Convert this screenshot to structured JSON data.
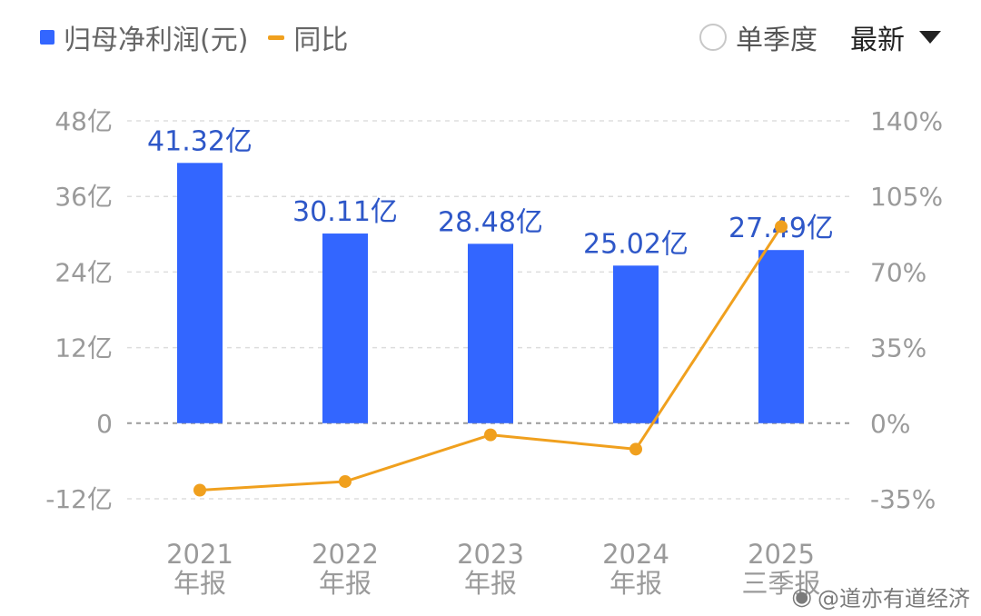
{
  "legend": {
    "bar_label": "归母净利润(元)",
    "line_label": "同比"
  },
  "controls": {
    "single_quarter_label": "单季度",
    "latest_label": "最新"
  },
  "colors": {
    "bar": "#3366ff",
    "line": "#f0a01e",
    "data_label": "#2e57c8",
    "axis_text": "#9a9a9a",
    "grid": "#dddddd",
    "zero_line": "#9a9a9a"
  },
  "chart_data": {
    "type": "bar",
    "categories": [
      [
        "2021",
        "年报"
      ],
      [
        "2022",
        "年报"
      ],
      [
        "2023",
        "年报"
      ],
      [
        "2024",
        "年报"
      ],
      [
        "2025",
        "三季报"
      ]
    ],
    "series": [
      {
        "name": "归母净利润(元)",
        "type": "bar",
        "axis": "left",
        "values": [
          41.32,
          30.11,
          28.48,
          25.02,
          27.49
        ],
        "data_labels": [
          "41.32亿",
          "30.11亿",
          "28.48亿",
          "25.02亿",
          "27.49亿"
        ]
      },
      {
        "name": "同比",
        "type": "line",
        "axis": "right",
        "values": [
          -31,
          -27,
          -5.4,
          -12,
          91
        ]
      }
    ],
    "y_left": {
      "range": [
        -12,
        48
      ],
      "ticks": [
        48,
        36,
        24,
        12,
        0,
        -12
      ],
      "tick_labels": [
        "48亿",
        "36亿",
        "24亿",
        "12亿",
        "0",
        "-12亿"
      ]
    },
    "y_right": {
      "range": [
        -35,
        140
      ],
      "ticks": [
        140,
        105,
        70,
        35,
        0,
        -35
      ],
      "tick_labels": [
        "140%",
        "105%",
        "70%",
        "35%",
        "0%",
        "-35%"
      ]
    },
    "grid": true
  },
  "watermark": {
    "icon": "weibo-icon",
    "text": "@道亦有道经济"
  }
}
